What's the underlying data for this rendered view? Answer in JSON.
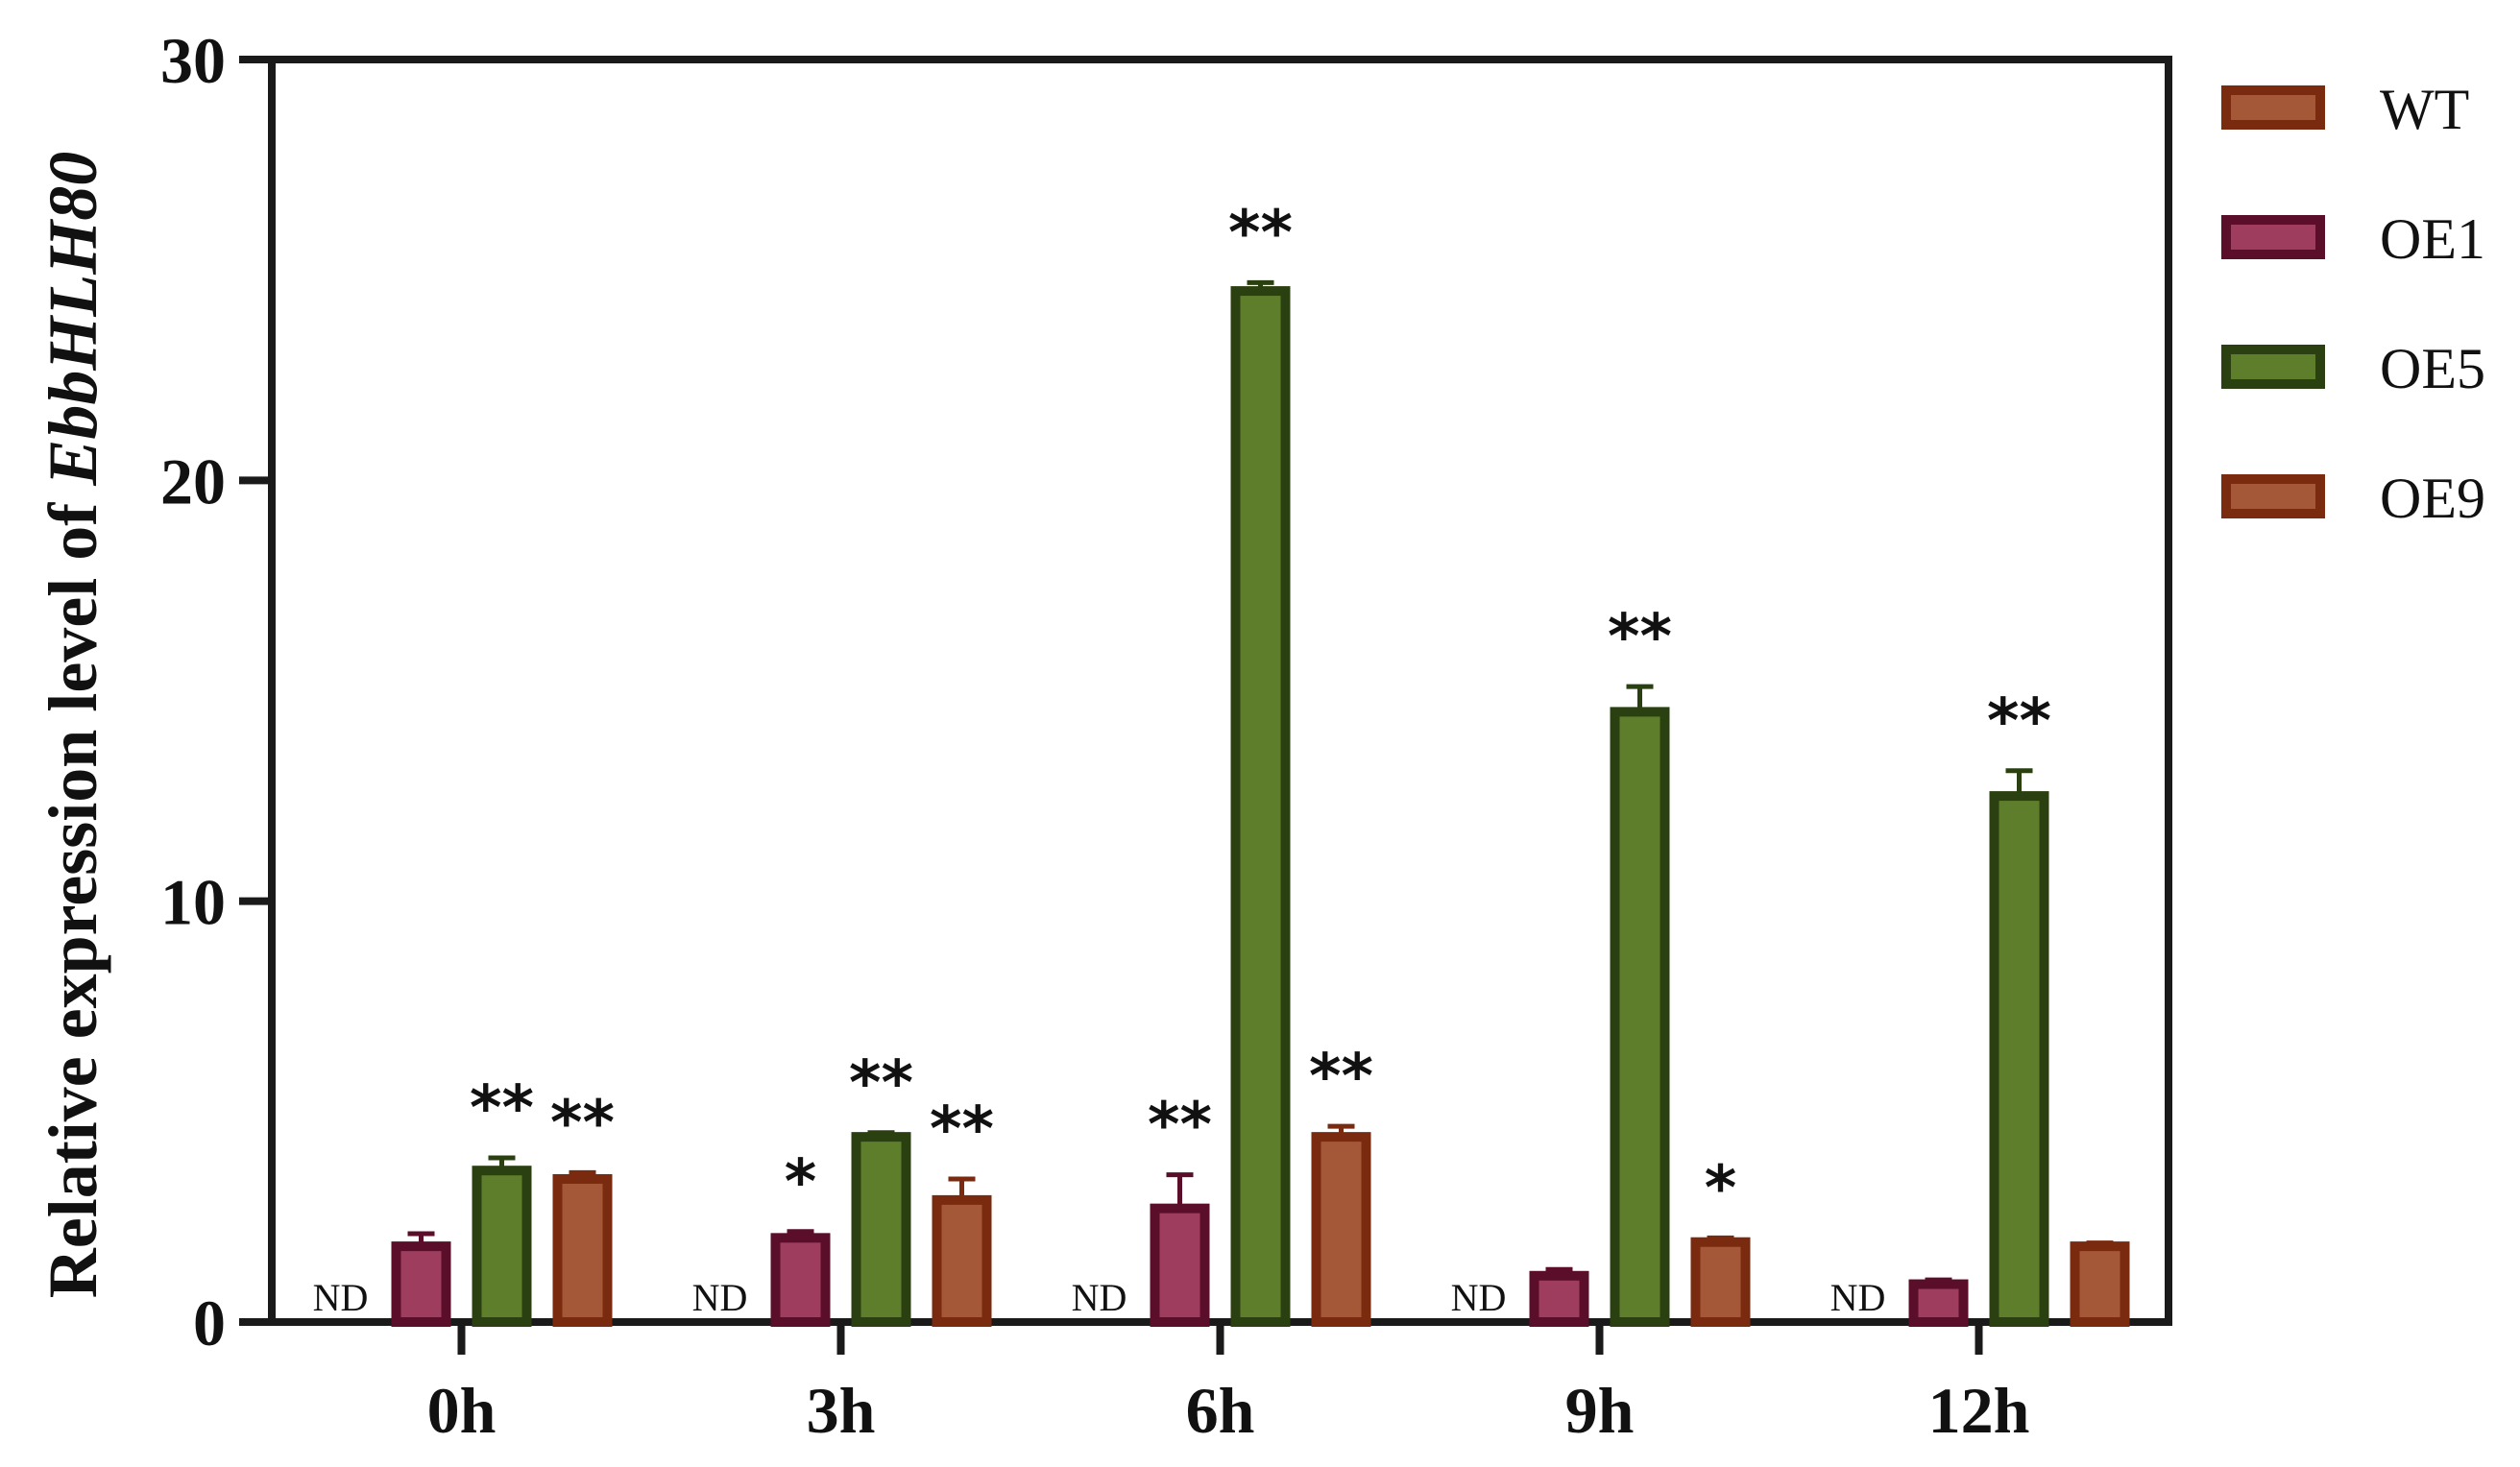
{
  "chart_data": {
    "type": "bar",
    "ylabel_prefix": "Relative expression level of ",
    "ylabel_gene": "EbbHLH80",
    "ylim": [
      0,
      30
    ],
    "yticks": [
      "0",
      "10",
      "20",
      "30"
    ],
    "ytick_values": [
      0,
      10,
      20,
      30
    ],
    "categories": [
      "0h",
      "3h",
      "6h",
      "9h",
      "12h"
    ],
    "series": [
      {
        "name": "WT",
        "fill": "#a55838",
        "edge": "#7a2a0e",
        "values": [
          null,
          null,
          null,
          null,
          null
        ],
        "errors": [
          null,
          null,
          null,
          null,
          null
        ],
        "annotations": [
          "ND",
          "ND",
          "ND",
          "ND",
          "ND"
        ]
      },
      {
        "name": "OE1",
        "fill": "#9e3d5e",
        "edge": "#5a0e2a",
        "values": [
          1.8,
          2.0,
          2.7,
          1.1,
          0.9
        ],
        "errors": [
          0.3,
          0.15,
          0.8,
          0.15,
          0.1
        ],
        "annotations": [
          "",
          "*",
          "**",
          "",
          ""
        ]
      },
      {
        "name": "OE5",
        "fill": "#5e7e2c",
        "edge": "#2a4010",
        "values": [
          3.6,
          4.4,
          24.5,
          14.5,
          12.5
        ],
        "errors": [
          0.3,
          0.1,
          0.2,
          0.6,
          0.6
        ],
        "annotations": [
          "**",
          "**",
          "**",
          "**",
          "**"
        ]
      },
      {
        "name": "OE9",
        "fill": "#a55838",
        "edge": "#7a2a0e",
        "values": [
          3.4,
          2.9,
          4.4,
          1.9,
          1.8
        ],
        "errors": [
          0.15,
          0.5,
          0.25,
          0.1,
          0.08
        ],
        "annotations": [
          "**",
          "**",
          "**",
          "*",
          ""
        ]
      }
    ],
    "legend_position": "right",
    "grid": false
  }
}
